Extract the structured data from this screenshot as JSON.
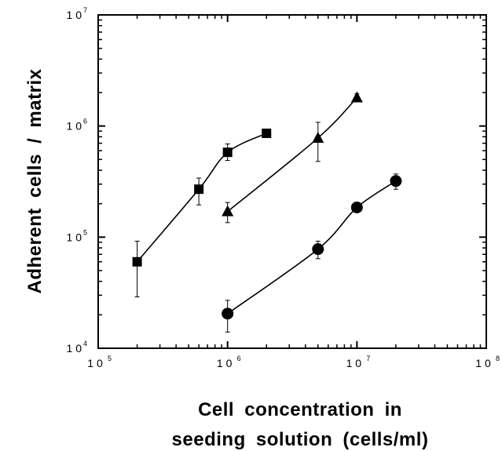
{
  "chart_data": {
    "type": "scatter",
    "xlabel_lines": [
      "Cell  concentration  in",
      "seeding  solution  (cells/ml)"
    ],
    "ylabel": "Adherent  cells  /  matrix",
    "x_scale": "log",
    "y_scale": "log",
    "xlim": [
      100000,
      100000000
    ],
    "ylim": [
      10000,
      10000000
    ],
    "x_ticks": [
      {
        "base": "1 0",
        "exp": "5"
      },
      {
        "base": "1 0",
        "exp": "6"
      },
      {
        "base": "1 0",
        "exp": "7"
      },
      {
        "base": "1 0",
        "exp": "8"
      }
    ],
    "y_ticks": [
      {
        "base": "1 0",
        "exp": "4"
      },
      {
        "base": "1 0",
        "exp": "5"
      },
      {
        "base": "1 0",
        "exp": "6"
      },
      {
        "base": "1 0",
        "exp": "7"
      }
    ],
    "grid": false,
    "series": [
      {
        "marker": "square",
        "color": "#000000",
        "points": [
          {
            "x": 200000,
            "y": 60000,
            "err_low": 29000,
            "err_high": 92000
          },
          {
            "x": 600000,
            "y": 270000,
            "err_low": 195000,
            "err_high": 340000
          },
          {
            "x": 1000000,
            "y": 580000,
            "err_low": 490000,
            "err_high": 690000
          },
          {
            "x": 2000000,
            "y": 860000
          }
        ]
      },
      {
        "marker": "triangle",
        "color": "#000000",
        "points": [
          {
            "x": 1000000,
            "y": 170000,
            "err_low": 135000,
            "err_high": 205000
          },
          {
            "x": 5000000,
            "y": 780000,
            "err_low": 480000,
            "err_high": 1080000
          },
          {
            "x": 10000000,
            "y": 1800000,
            "err_low": 1650000,
            "err_high": 1950000
          }
        ]
      },
      {
        "marker": "circle",
        "color": "#000000",
        "points": [
          {
            "x": 1000000,
            "y": 20500,
            "err_low": 14000,
            "err_high": 27000
          },
          {
            "x": 5000000,
            "y": 78000,
            "err_low": 64000,
            "err_high": 92000
          },
          {
            "x": 10000000,
            "y": 185000
          },
          {
            "x": 20000000,
            "y": 320000,
            "err_low": 270000,
            "err_high": 370000
          }
        ]
      }
    ]
  }
}
